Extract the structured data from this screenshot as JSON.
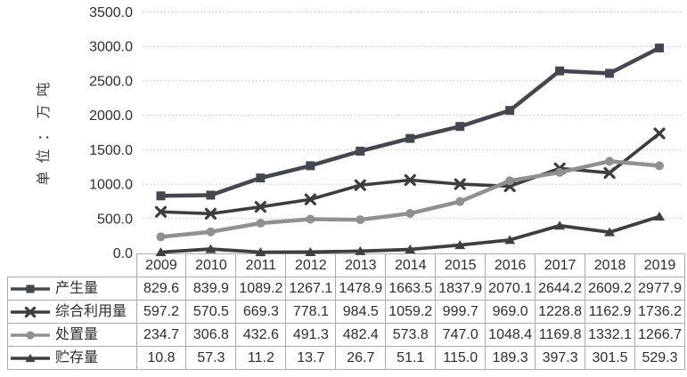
{
  "chart": {
    "y_axis_title": "单位：万吨",
    "y_ticks": [
      "3500.0",
      "3000.0",
      "2500.0",
      "2000.0",
      "1500.0",
      "1000.0",
      "500.0",
      "0.0"
    ],
    "grid_color": "#bdbdbd",
    "table_border_color": "#ababab",
    "text_color": "#2d2d2d"
  },
  "chart_data": {
    "type": "line",
    "title": "",
    "xlabel": "",
    "ylabel": "单位：万吨",
    "ylim": [
      0,
      3500
    ],
    "y_step": 500,
    "grid": true,
    "legend_position": "table-left-column",
    "categories": [
      "2009",
      "2010",
      "2011",
      "2012",
      "2013",
      "2014",
      "2015",
      "2016",
      "2017",
      "2018",
      "2019"
    ],
    "series": [
      {
        "id": "production",
        "name": "产生量",
        "marker": "square",
        "color": "#45474e",
        "line_width": 4.5,
        "values": [
          829.6,
          839.9,
          1089.2,
          1267.1,
          1478.9,
          1663.5,
          1837.9,
          2070.1,
          2644.2,
          2609.2,
          2977.9
        ]
      },
      {
        "id": "comprehensive-utilization",
        "name": "综合利用量",
        "marker": "x",
        "color": "#3d3d3f",
        "line_width": 3.6,
        "values": [
          597.2,
          570.5,
          669.3,
          778.1,
          984.5,
          1059.2,
          999.7,
          969.0,
          1228.8,
          1162.9,
          1736.2
        ]
      },
      {
        "id": "disposal",
        "name": "处置量",
        "marker": "circle",
        "color": "#909090",
        "line_width": 4.5,
        "values": [
          234.7,
          306.8,
          432.6,
          491.3,
          482.4,
          573.8,
          747.0,
          1048.4,
          1169.8,
          1332.1,
          1266.7
        ]
      },
      {
        "id": "storage",
        "name": "贮存量",
        "marker": "triangle",
        "color": "#3f3f41",
        "line_width": 3.8,
        "values": [
          10.8,
          57.3,
          11.2,
          13.7,
          26.7,
          51.1,
          115.0,
          189.3,
          397.3,
          301.5,
          529.3
        ]
      }
    ]
  }
}
